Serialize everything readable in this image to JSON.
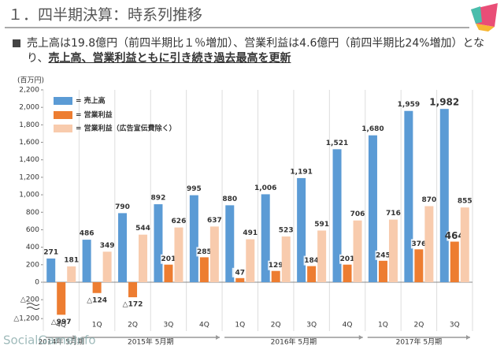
{
  "title": "１．四半期決算：時系列推移",
  "bullet": {
    "text": "売上高は19.8億円（前四半期比１％増加）、営業利益は4.6億円（前四半期比24%増加）となり、",
    "emphasis": "売上高、営業利益ともに引き続き過去最高を更新"
  },
  "watermark": "SocialGameInfo",
  "chart_data": {
    "type": "bar",
    "y_unit": "(百万円)",
    "axis_break": true,
    "categories": [
      "4Q",
      "1Q",
      "2Q",
      "3Q",
      "4Q",
      "1Q",
      "2Q",
      "3Q",
      "4Q",
      "1Q",
      "2Q",
      "3Q"
    ],
    "periods": [
      {
        "label": "2014年 5月期",
        "from": 0,
        "to": 0
      },
      {
        "label": "2015年 5月期",
        "from": 1,
        "to": 4
      },
      {
        "label": "2016年 5月期",
        "from": 5,
        "to": 8
      },
      {
        "label": "2017年 5月期",
        "from": 9,
        "to": 11
      }
    ],
    "series": [
      {
        "name": "= 売上高",
        "color": "#5b9bd5",
        "values": [
          271,
          486,
          790,
          892,
          995,
          880,
          1006,
          1191,
          1521,
          1680,
          1959,
          1982
        ],
        "value_labels": [
          "271",
          "486",
          "790",
          "892",
          "995",
          "880",
          "1,006",
          "1,191",
          "1,521",
          "1,680",
          "1,959",
          "1,982"
        ]
      },
      {
        "name": "= 営業利益",
        "color": "#ed7d31",
        "values": [
          -997,
          -124,
          -172,
          201,
          285,
          47,
          129,
          184,
          201,
          245,
          376,
          464
        ],
        "value_labels": [
          "△997",
          "△124",
          "△172",
          "201",
          "285",
          "47",
          "129",
          "184",
          "201",
          "245",
          "376",
          "464"
        ]
      },
      {
        "name": "= 営業利益（広告宣伝費除く）",
        "color": "#f8cbad",
        "values": [
          181,
          349,
          544,
          626,
          637,
          491,
          523,
          591,
          706,
          716,
          870,
          855
        ],
        "value_labels": [
          "181",
          "349",
          "544",
          "626",
          "637",
          "491",
          "523",
          "591",
          "706",
          "716",
          "870",
          "855"
        ]
      }
    ],
    "ylim": [
      -1200,
      2200
    ],
    "yticks": [
      {
        "value": -1200,
        "label": "△1,200"
      },
      {
        "value": -200,
        "label": "△200"
      },
      0,
      200,
      400,
      600,
      800,
      {
        "value": 1000,
        "label": "1,000"
      },
      {
        "value": 1200,
        "label": "1,200"
      },
      {
        "value": 1400,
        "label": "1,400"
      },
      {
        "value": 1600,
        "label": "1,600"
      },
      {
        "value": 1800,
        "label": "1,800"
      },
      {
        "value": 2000,
        "label": "2,000"
      },
      {
        "value": 2200,
        "label": "2,200"
      }
    ]
  }
}
